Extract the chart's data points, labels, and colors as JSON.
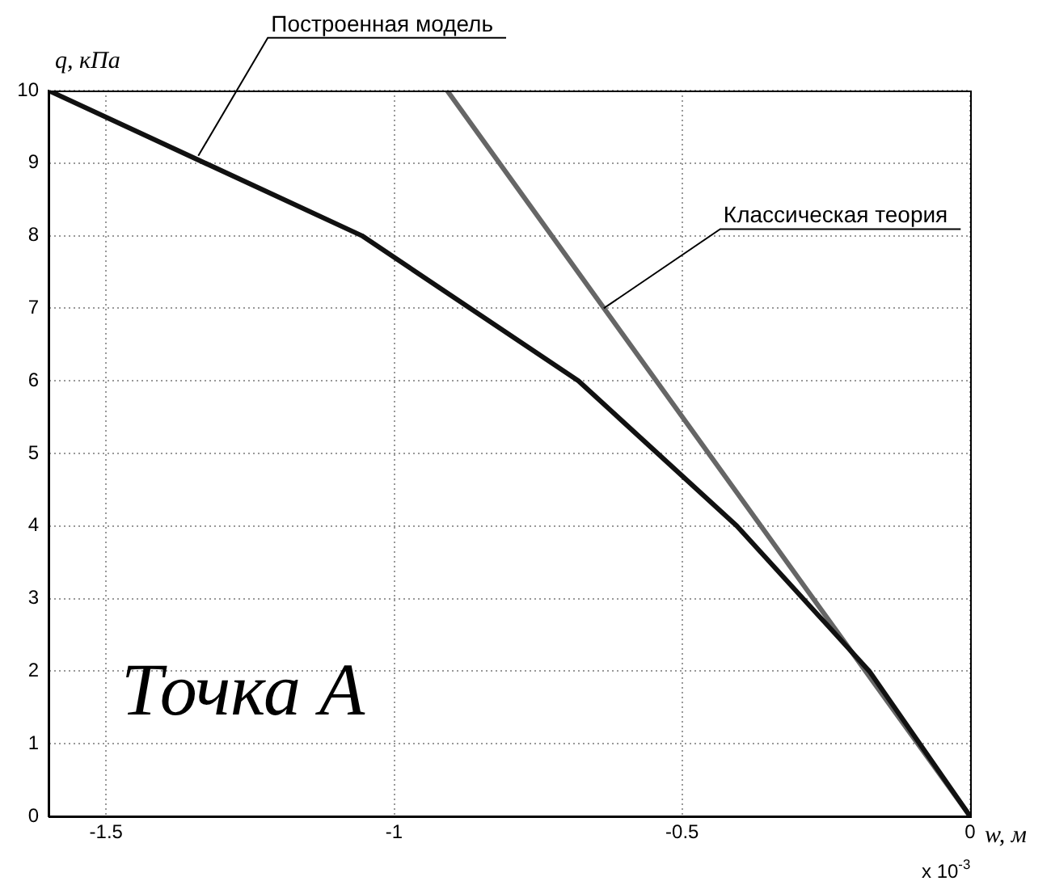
{
  "chart_data": {
    "type": "line",
    "xlabel": "w, м",
    "ylabel": "q, кПа",
    "xlim": [
      -1.6,
      0
    ],
    "xticks": [
      -1.5,
      -1,
      -0.5,
      0
    ],
    "ylim": [
      0,
      10
    ],
    "yticks": [
      0,
      1,
      2,
      3,
      4,
      5,
      6,
      7,
      8,
      9,
      10
    ],
    "grid": true,
    "legend": false,
    "marker": "none",
    "line_style": "solid",
    "series": [
      {
        "color": "#111111",
        "x": [
          -1.6,
          -1.056,
          -0.68,
          -0.405,
          -0.175,
          0
        ],
        "values": [
          10,
          8,
          6,
          4,
          2,
          0
        ]
      },
      {
        "color": "#666666",
        "x": [
          -0.908,
          0
        ],
        "values": [
          10,
          0
        ]
      }
    ],
    "annotations": [
      {
        "text": "Построенная модель",
        "x": -1.34,
        "y": 9.1
      },
      {
        "text": "Классическая теория",
        "x": -0.636,
        "y": 7
      },
      "Точка А",
      "x 10$^{-3}$"
    ]
  }
}
